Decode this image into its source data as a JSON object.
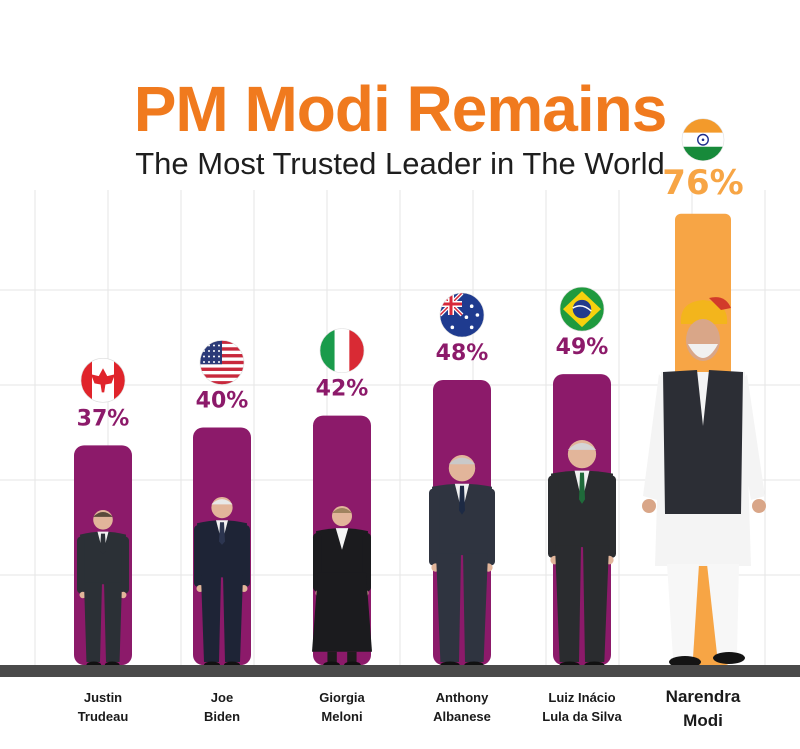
{
  "header": {
    "title": "PM Modi Remains",
    "subtitle": "The Most Trusted Leader in The World"
  },
  "colors": {
    "title": "#f07a1e",
    "bar": "#8c1a6a",
    "highlight_bar": "#f7a545",
    "value": "#8c1a6a",
    "highlight_value": "#f7a545",
    "baseline": "#4a4a4a",
    "grid": "#e6e6e6"
  },
  "chart_data": {
    "type": "bar",
    "title": "PM Modi Remains",
    "subtitle": "The Most Trusted Leader in The World",
    "xlabel": "",
    "ylabel": "",
    "ylim": [
      0,
      80
    ],
    "unit": "%",
    "grid": true,
    "categories": [
      {
        "line1": "Justin",
        "line2": "Trudeau",
        "flag": "canada-flag-icon",
        "value_label": "37%"
      },
      {
        "line1": "Joe",
        "line2": "Biden",
        "flag": "usa-flag-icon",
        "value_label": "40%"
      },
      {
        "line1": "Giorgia",
        "line2": "Meloni",
        "flag": "italy-flag-icon",
        "value_label": "42%"
      },
      {
        "line1": "Anthony",
        "line2": "Albanese",
        "flag": "australia-flag-icon",
        "value_label": "48%"
      },
      {
        "line1": "Luiz Inácio",
        "line2": "Lula da Silva",
        "flag": "brazil-flag-icon",
        "value_label": "49%"
      },
      {
        "line1": "Narendra",
        "line2": "Modi",
        "flag": "india-flag-icon",
        "value_label": "76%"
      }
    ],
    "values": [
      37,
      40,
      42,
      48,
      49,
      76
    ],
    "highlight_index": 5
  }
}
